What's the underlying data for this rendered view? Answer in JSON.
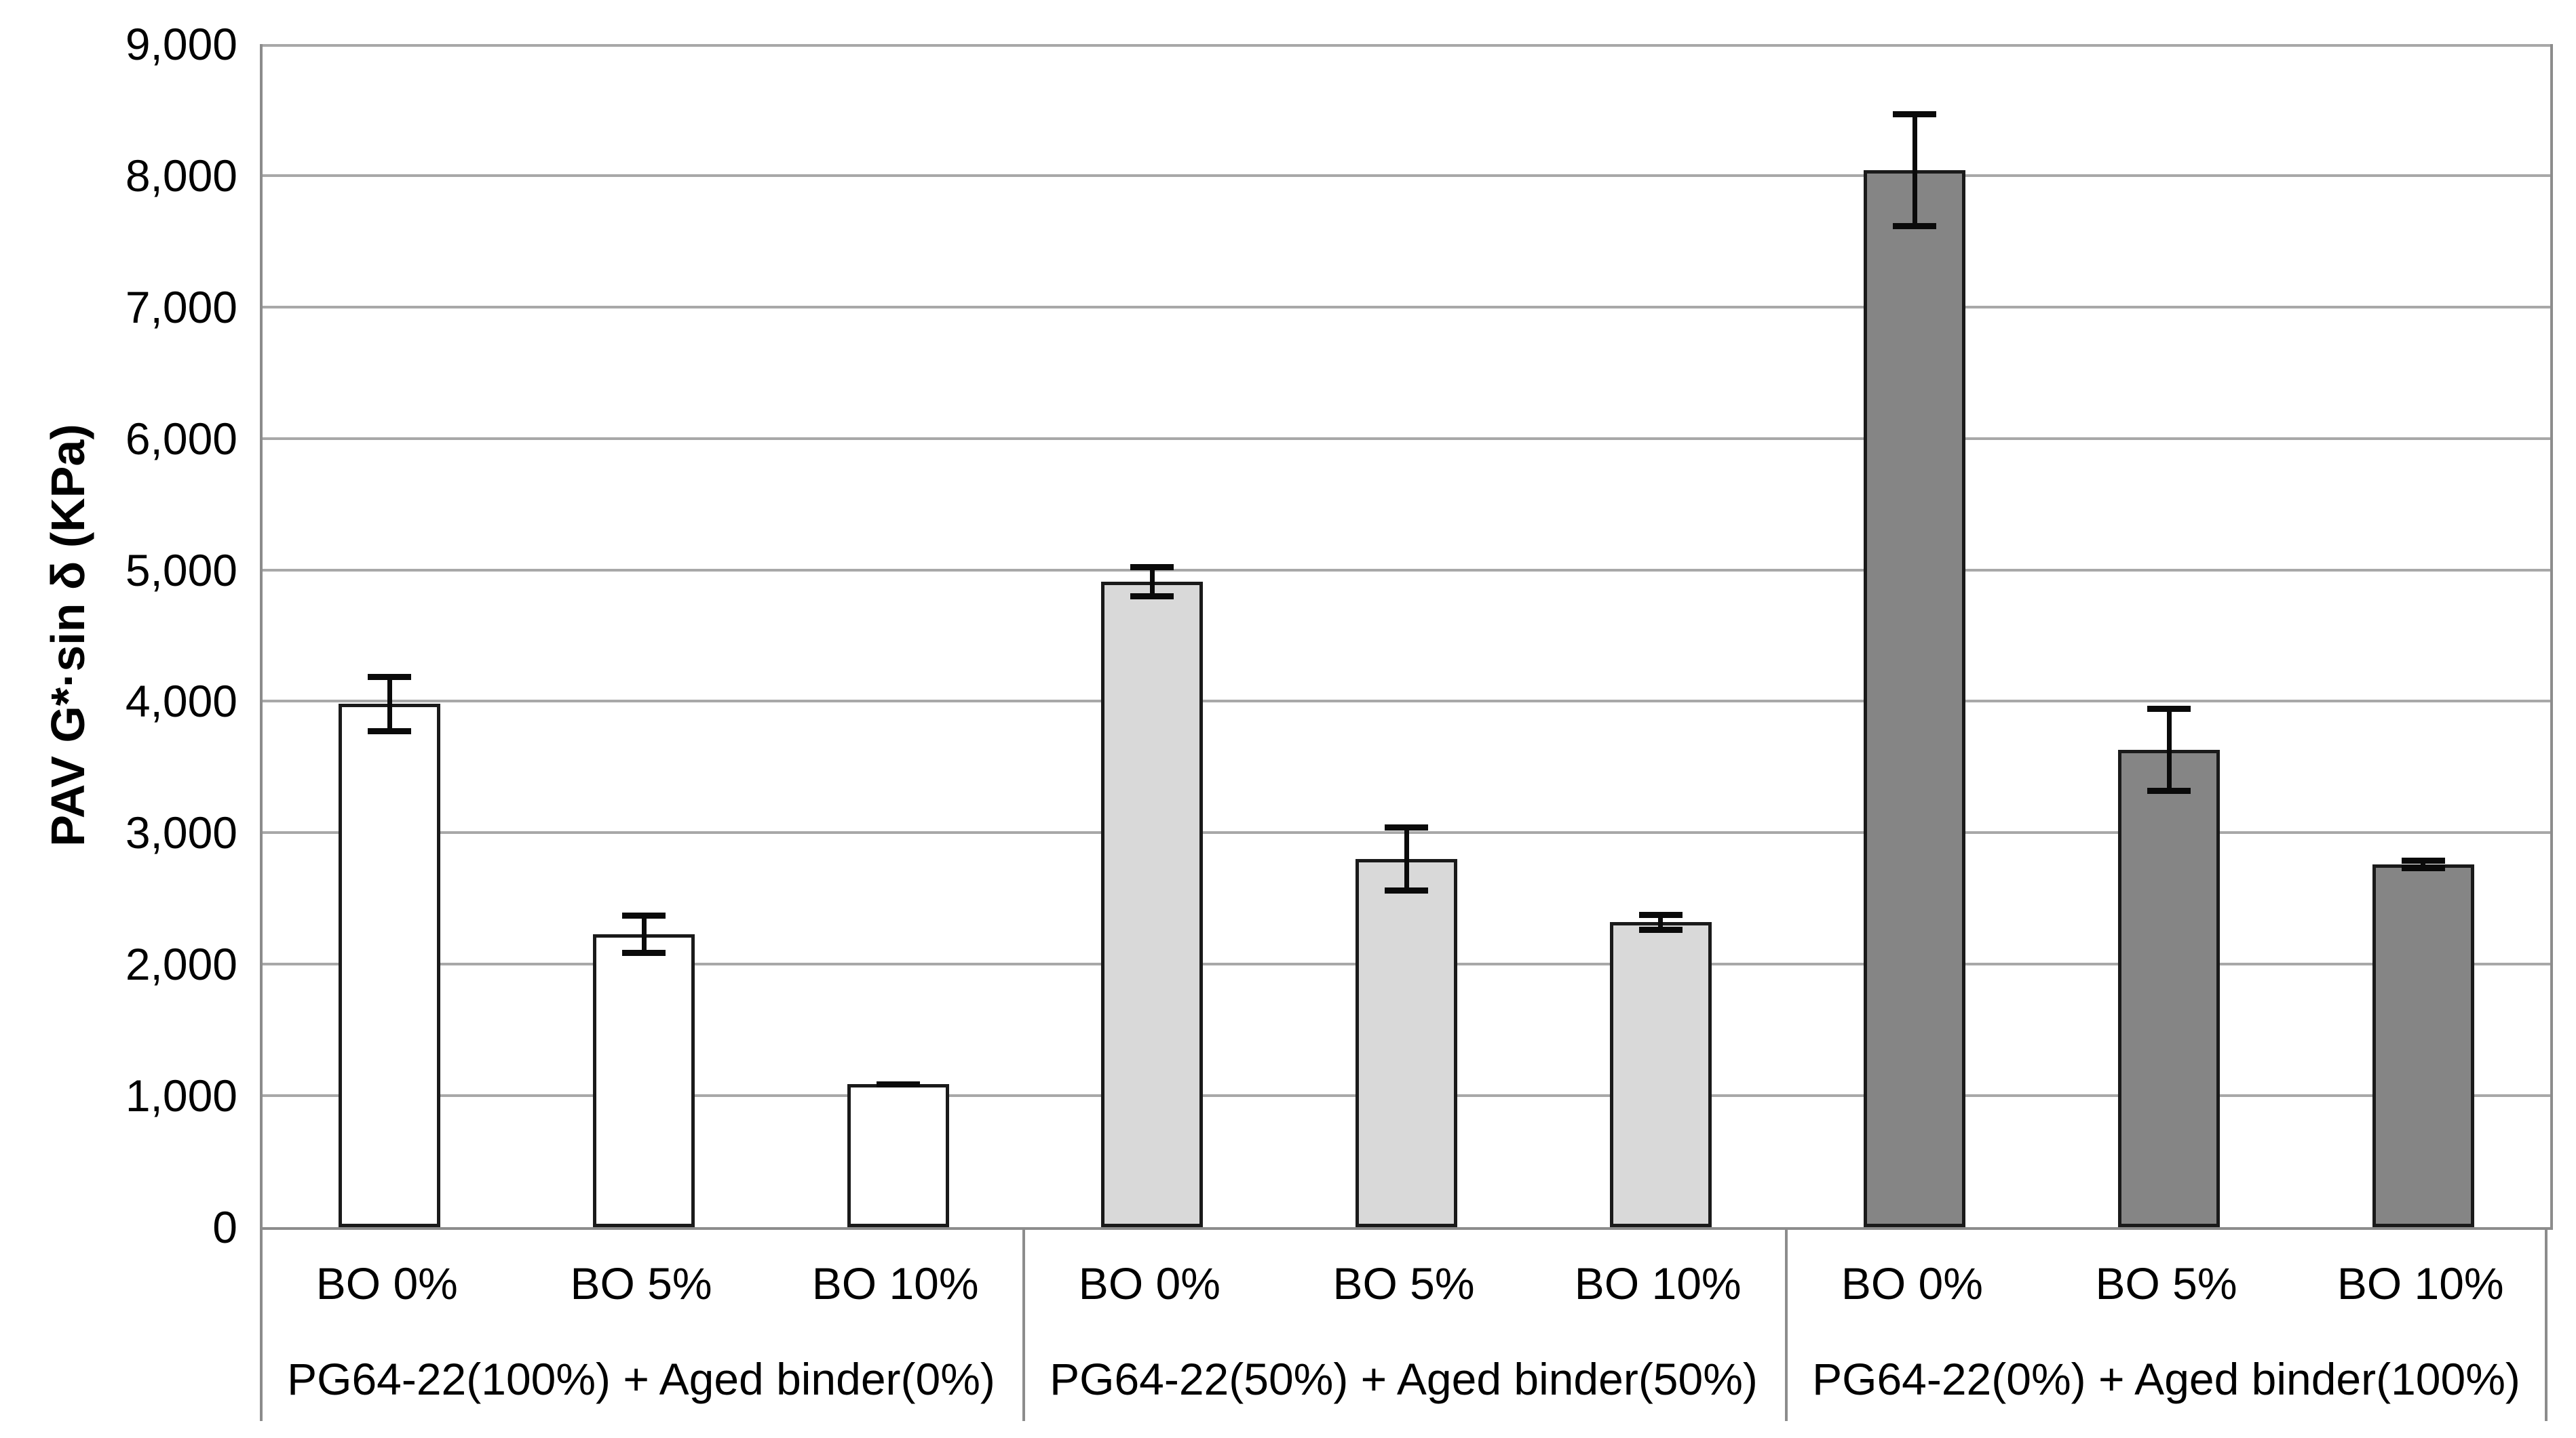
{
  "chart_data": {
    "type": "bar",
    "title": "",
    "xlabel": "",
    "ylabel": "PAV G*·sin δ (KPa)",
    "ylim": [
      0,
      9000
    ],
    "ytick_step": 1000,
    "ytick_labels": [
      "0",
      "1,000",
      "2,000",
      "3,000",
      "4,000",
      "5,000",
      "6,000",
      "7,000",
      "8,000",
      "9,000"
    ],
    "grid": "horizontal-gridlines-on",
    "legend_position": "none",
    "error_bars": "symmetric, black, capped",
    "groups": [
      {
        "label": "PG64-22(100%) + Aged binder(0%)",
        "categories": [
          "BO 0%",
          "BO 5%",
          "BO 10%"
        ],
        "values": [
          3980,
          2230,
          1090
        ],
        "errors": [
          230,
          165,
          20
        ],
        "bar_fill": "#ffffff"
      },
      {
        "label": "PG64-22(50%) + Aged binder(50%)",
        "categories": [
          "BO 0%",
          "BO 5%",
          "BO 10%"
        ],
        "values": [
          4910,
          2800,
          2320
        ],
        "errors": [
          135,
          265,
          80
        ],
        "bar_fill": "#d9d9d9"
      },
      {
        "label": "PG64-22(0%) + Aged binder(100%)",
        "categories": [
          "BO 0%",
          "BO 5%",
          "BO 10%"
        ],
        "values": [
          8040,
          3630,
          2760
        ],
        "errors": [
          450,
          335,
          50
        ],
        "bar_fill": "#858585"
      }
    ],
    "styles": {
      "bar_border": "#1a1a1a",
      "gridline": "#a8a8a8",
      "axis_line": "#8c8c8c",
      "error_bar_color": "#0a0a0a",
      "text_color": "#000000"
    }
  }
}
